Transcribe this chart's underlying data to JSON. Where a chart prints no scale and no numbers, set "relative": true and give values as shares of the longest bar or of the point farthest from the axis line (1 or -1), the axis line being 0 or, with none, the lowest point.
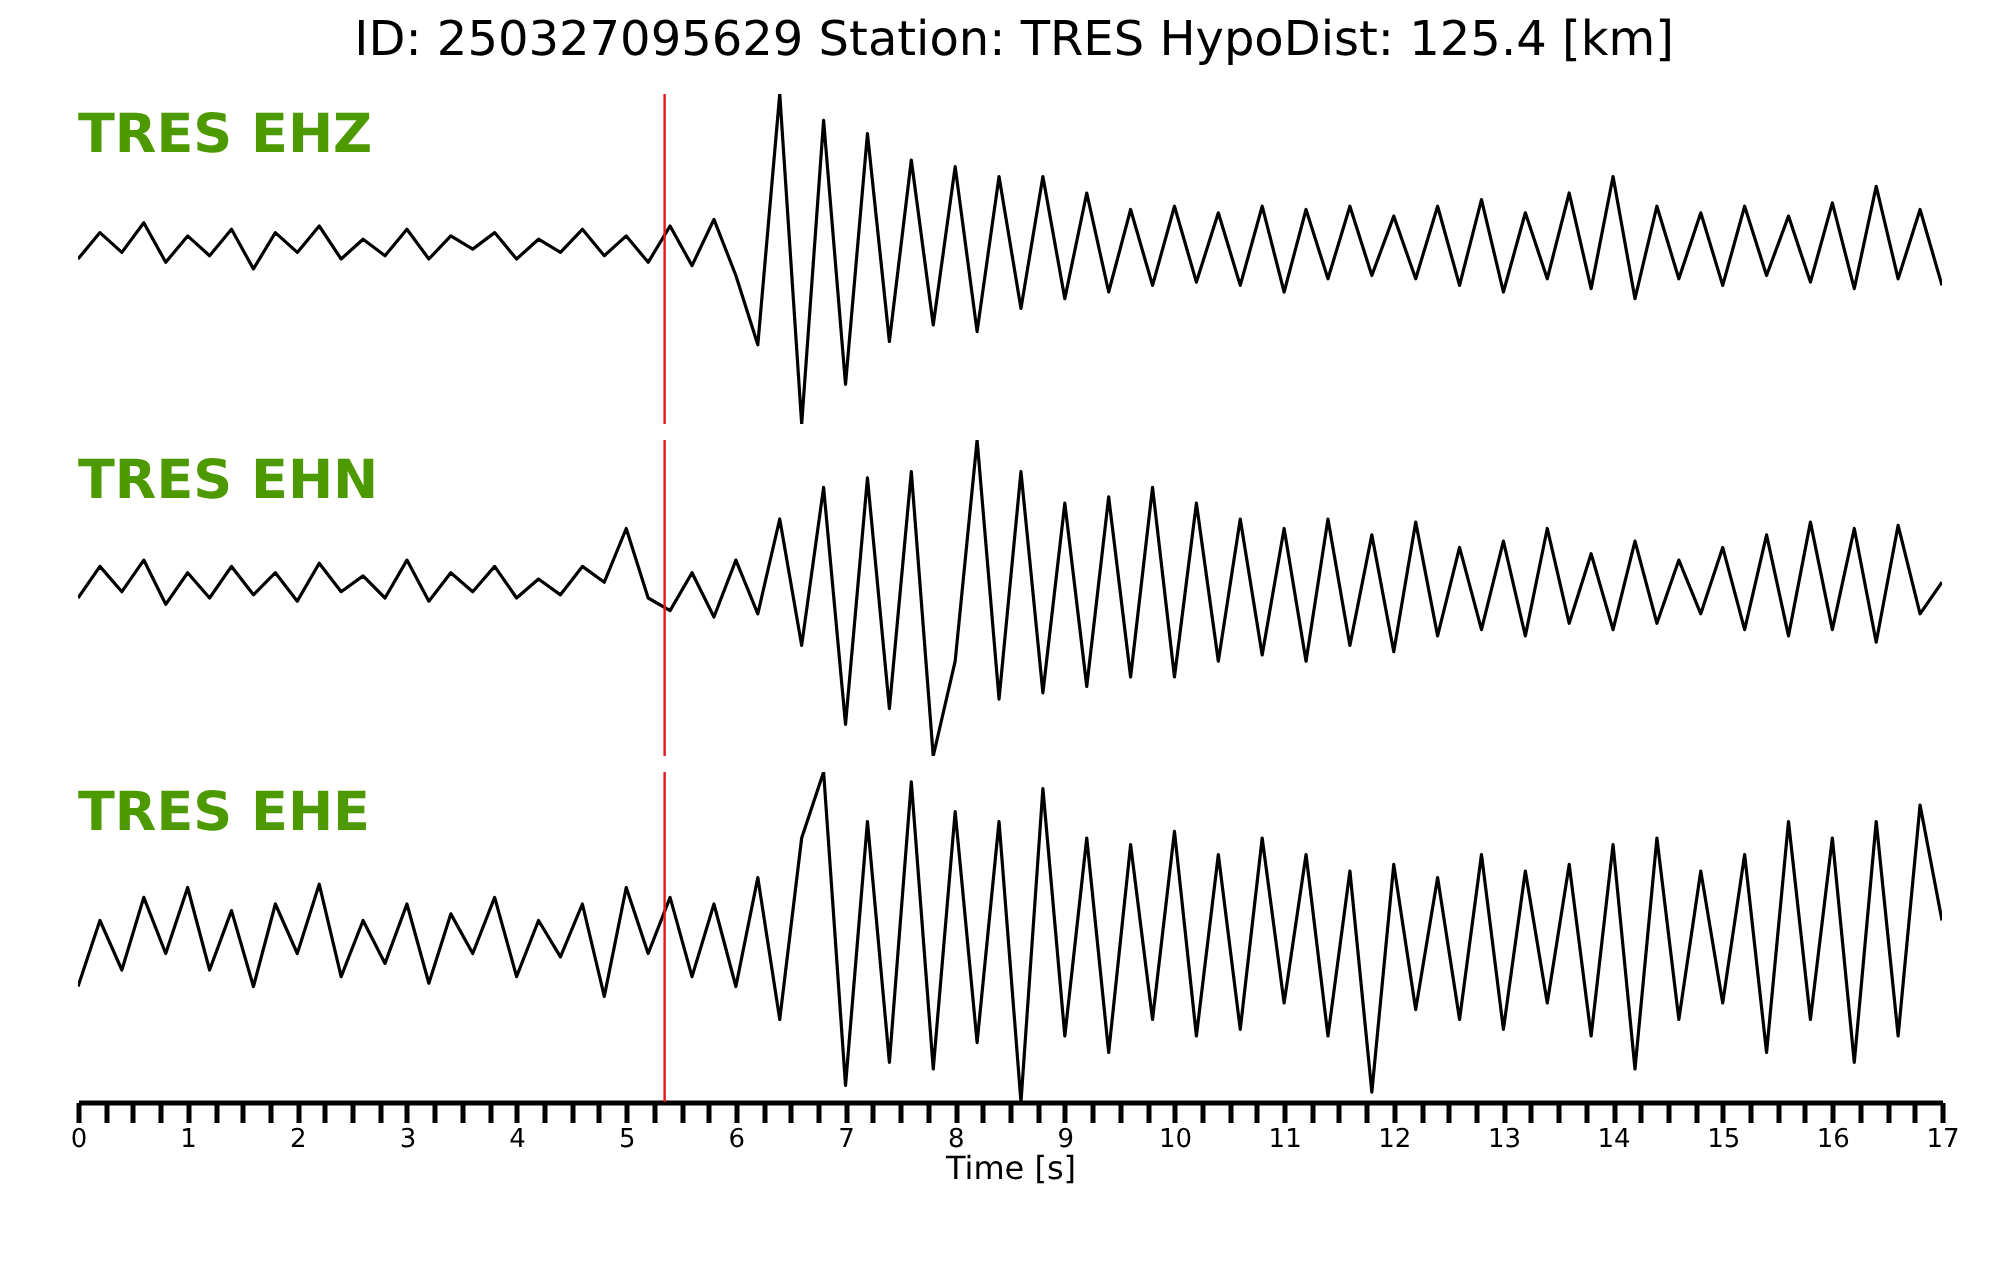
{
  "chart_data": [
    {
      "type": "line",
      "title": "ID: 250327095629   Station: TRES   HypoDist:   125.4 [km]",
      "relative": true,
      "xlim": [
        0,
        17
      ],
      "tick_labels": false,
      "ref_lines": [
        {
          "axis": "x",
          "value": 5.35,
          "color": "#e8141c"
        }
      ],
      "x": [
        0,
        0.2,
        0.4,
        0.6,
        0.8,
        1,
        1.2,
        1.4,
        1.6,
        1.8,
        2,
        2.2,
        2.4,
        2.6,
        2.8,
        3,
        3.2,
        3.4,
        3.6,
        3.8,
        4,
        4.2,
        4.4,
        4.6,
        4.8,
        5,
        5.2,
        5.4,
        5.6,
        5.8,
        6,
        6.2,
        6.4,
        6.6,
        6.8,
        7,
        7.2,
        7.4,
        7.6,
        7.8,
        8,
        8.2,
        8.4,
        8.6,
        8.8,
        9,
        9.2,
        9.4,
        9.6,
        9.8,
        10,
        10.2,
        10.4,
        10.6,
        10.8,
        11,
        11.2,
        11.4,
        11.6,
        11.8,
        12,
        12.2,
        12.4,
        12.6,
        12.8,
        13,
        13.2,
        13.4,
        13.6,
        13.8,
        14,
        14.2,
        14.4,
        14.6,
        14.8,
        15,
        15.2,
        15.4,
        15.6,
        15.8,
        16,
        16.2,
        16.4,
        16.6,
        16.8,
        17
      ],
      "series": [
        {
          "name": "TRES EHZ",
          "color": "#000000",
          "values": [
            0.5,
            0.58,
            0.52,
            0.61,
            0.49,
            0.57,
            0.51,
            0.59,
            0.47,
            0.58,
            0.52,
            0.6,
            0.5,
            0.56,
            0.51,
            0.59,
            0.5,
            0.57,
            0.53,
            0.58,
            0.5,
            0.56,
            0.52,
            0.59,
            0.51,
            0.57,
            0.49,
            0.6,
            0.48,
            0.62,
            0.45,
            0.24,
            1.0,
            0.0,
            0.92,
            0.12,
            0.88,
            0.25,
            0.8,
            0.3,
            0.78,
            0.28,
            0.75,
            0.35,
            0.75,
            0.38,
            0.7,
            0.4,
            0.65,
            0.42,
            0.66,
            0.43,
            0.64,
            0.42,
            0.66,
            0.4,
            0.65,
            0.44,
            0.66,
            0.45,
            0.63,
            0.44,
            0.66,
            0.42,
            0.68,
            0.4,
            0.64,
            0.44,
            0.7,
            0.41,
            0.75,
            0.38,
            0.66,
            0.44,
            0.64,
            0.42,
            0.66,
            0.45,
            0.63,
            0.43,
            0.67,
            0.41,
            0.72,
            0.44,
            0.65,
            0.42
          ]
        }
      ]
    },
    {
      "type": "line",
      "relative": true,
      "xlim": [
        0,
        17
      ],
      "tick_labels": false,
      "ref_lines": [
        {
          "axis": "x",
          "value": 5.35,
          "color": "#e8141c"
        }
      ],
      "x": [
        0,
        0.2,
        0.4,
        0.6,
        0.8,
        1,
        1.2,
        1.4,
        1.6,
        1.8,
        2,
        2.2,
        2.4,
        2.6,
        2.8,
        3,
        3.2,
        3.4,
        3.6,
        3.8,
        4,
        4.2,
        4.4,
        4.6,
        4.8,
        5,
        5.2,
        5.4,
        5.6,
        5.8,
        6,
        6.2,
        6.4,
        6.6,
        6.8,
        7,
        7.2,
        7.4,
        7.6,
        7.8,
        8,
        8.2,
        8.4,
        8.6,
        8.8,
        9,
        9.2,
        9.4,
        9.6,
        9.8,
        10,
        10.2,
        10.4,
        10.6,
        10.8,
        11,
        11.2,
        11.4,
        11.6,
        11.8,
        12,
        12.2,
        12.4,
        12.6,
        12.8,
        13,
        13.2,
        13.4,
        13.6,
        13.8,
        14,
        14.2,
        14.4,
        14.6,
        14.8,
        15,
        15.2,
        15.4,
        15.6,
        15.8,
        16,
        16.2,
        16.4,
        16.6,
        16.8,
        17
      ],
      "series": [
        {
          "name": "TRES EHN",
          "color": "#000000",
          "values": [
            0.5,
            0.6,
            0.52,
            0.62,
            0.48,
            0.58,
            0.5,
            0.6,
            0.51,
            0.58,
            0.49,
            0.61,
            0.52,
            0.57,
            0.5,
            0.62,
            0.49,
            0.58,
            0.52,
            0.6,
            0.5,
            0.56,
            0.51,
            0.6,
            0.55,
            0.72,
            0.5,
            0.46,
            0.58,
            0.44,
            0.62,
            0.45,
            0.75,
            0.35,
            0.85,
            0.1,
            0.88,
            0.15,
            0.9,
            0.0,
            0.3,
            1.0,
            0.18,
            0.9,
            0.2,
            0.8,
            0.22,
            0.82,
            0.25,
            0.85,
            0.25,
            0.8,
            0.3,
            0.75,
            0.32,
            0.72,
            0.3,
            0.75,
            0.35,
            0.7,
            0.33,
            0.74,
            0.38,
            0.66,
            0.4,
            0.68,
            0.38,
            0.72,
            0.42,
            0.64,
            0.4,
            0.68,
            0.42,
            0.62,
            0.45,
            0.66,
            0.4,
            0.7,
            0.38,
            0.74,
            0.4,
            0.72,
            0.36,
            0.73,
            0.45,
            0.55
          ]
        }
      ]
    },
    {
      "type": "line",
      "relative": true,
      "xlim": [
        0,
        17
      ],
      "xlabel": "Time [s]",
      "ref_lines": [
        {
          "axis": "x",
          "value": 5.35,
          "color": "#e8141c"
        }
      ],
      "xticks": [
        0,
        {
          "value": 0.25,
          "label": null
        },
        {
          "value": 0.5,
          "label": null
        },
        {
          "value": 0.75,
          "label": null
        },
        1,
        {
          "value": 1.25,
          "label": null
        },
        {
          "value": 1.5,
          "label": null
        },
        {
          "value": 1.75,
          "label": null
        },
        2,
        {
          "value": 2.25,
          "label": null
        },
        {
          "value": 2.5,
          "label": null
        },
        {
          "value": 2.75,
          "label": null
        },
        3,
        {
          "value": 3.25,
          "label": null
        },
        {
          "value": 3.5,
          "label": null
        },
        {
          "value": 3.75,
          "label": null
        },
        4,
        {
          "value": 4.25,
          "label": null
        },
        {
          "value": 4.5,
          "label": null
        },
        {
          "value": 4.75,
          "label": null
        },
        5,
        {
          "value": 5.25,
          "label": null
        },
        {
          "value": 5.5,
          "label": null
        },
        {
          "value": 5.75,
          "label": null
        },
        6,
        {
          "value": 6.25,
          "label": null
        },
        {
          "value": 6.5,
          "label": null
        },
        {
          "value": 6.75,
          "label": null
        },
        7,
        {
          "value": 7.25,
          "label": null
        },
        {
          "value": 7.5,
          "label": null
        },
        {
          "value": 7.75,
          "label": null
        },
        8,
        {
          "value": 8.25,
          "label": null
        },
        {
          "value": 8.5,
          "label": null
        },
        {
          "value": 8.75,
          "label": null
        },
        9,
        {
          "value": 9.25,
          "label": null
        },
        {
          "value": 9.5,
          "label": null
        },
        {
          "value": 9.75,
          "label": null
        },
        10,
        {
          "value": 10.25,
          "label": null
        },
        {
          "value": 10.5,
          "label": null
        },
        {
          "value": 10.75,
          "label": null
        },
        11,
        {
          "value": 11.25,
          "label": null
        },
        {
          "value": 11.5,
          "label": null
        },
        {
          "value": 11.75,
          "label": null
        },
        12,
        {
          "value": 12.25,
          "label": null
        },
        {
          "value": 12.5,
          "label": null
        },
        {
          "value": 12.75,
          "label": null
        },
        13,
        {
          "value": 13.25,
          "label": null
        },
        {
          "value": 13.5,
          "label": null
        },
        {
          "value": 13.75,
          "label": null
        },
        14,
        {
          "value": 14.25,
          "label": null
        },
        {
          "value": 14.5,
          "label": null
        },
        {
          "value": 14.75,
          "label": null
        },
        15,
        {
          "value": 15.25,
          "label": null
        },
        {
          "value": 15.5,
          "label": null
        },
        {
          "value": 15.75,
          "label": null
        },
        16,
        {
          "value": 16.25,
          "label": null
        },
        {
          "value": 16.5,
          "label": null
        },
        {
          "value": 16.75,
          "label": null
        },
        17
      ],
      "x": [
        0,
        0.2,
        0.4,
        0.6,
        0.8,
        1,
        1.2,
        1.4,
        1.6,
        1.8,
        2,
        2.2,
        2.4,
        2.6,
        2.8,
        3,
        3.2,
        3.4,
        3.6,
        3.8,
        4,
        4.2,
        4.4,
        4.6,
        4.8,
        5,
        5.2,
        5.4,
        5.6,
        5.8,
        6,
        6.2,
        6.4,
        6.6,
        6.8,
        7,
        7.2,
        7.4,
        7.6,
        7.8,
        8,
        8.2,
        8.4,
        8.6,
        8.8,
        9,
        9.2,
        9.4,
        9.6,
        9.8,
        10,
        10.2,
        10.4,
        10.6,
        10.8,
        11,
        11.2,
        11.4,
        11.6,
        11.8,
        12,
        12.2,
        12.4,
        12.6,
        12.8,
        13,
        13.2,
        13.4,
        13.6,
        13.8,
        14,
        14.2,
        14.4,
        14.6,
        14.8,
        15,
        15.2,
        15.4,
        15.6,
        15.8,
        16,
        16.2,
        16.4,
        16.6,
        16.8,
        17
      ],
      "series": [
        {
          "name": "TRES EHE",
          "color": "#000000",
          "values": [
            0.35,
            0.55,
            0.4,
            0.62,
            0.45,
            0.65,
            0.4,
            0.58,
            0.35,
            0.6,
            0.45,
            0.66,
            0.38,
            0.55,
            0.42,
            0.6,
            0.36,
            0.57,
            0.45,
            0.62,
            0.38,
            0.55,
            0.44,
            0.6,
            0.32,
            0.65,
            0.45,
            0.62,
            0.38,
            0.6,
            0.35,
            0.68,
            0.25,
            0.8,
            1.0,
            0.05,
            0.85,
            0.12,
            0.97,
            0.1,
            0.88,
            0.18,
            0.85,
            0.0,
            0.95,
            0.2,
            0.8,
            0.15,
            0.78,
            0.25,
            0.82,
            0.2,
            0.75,
            0.22,
            0.8,
            0.3,
            0.75,
            0.2,
            0.7,
            0.03,
            0.72,
            0.28,
            0.68,
            0.25,
            0.75,
            0.22,
            0.7,
            0.3,
            0.72,
            0.2,
            0.78,
            0.1,
            0.8,
            0.25,
            0.7,
            0.3,
            0.75,
            0.15,
            0.85,
            0.25,
            0.8,
            0.12,
            0.85,
            0.2,
            0.9,
            0.55
          ]
        }
      ]
    }
  ]
}
